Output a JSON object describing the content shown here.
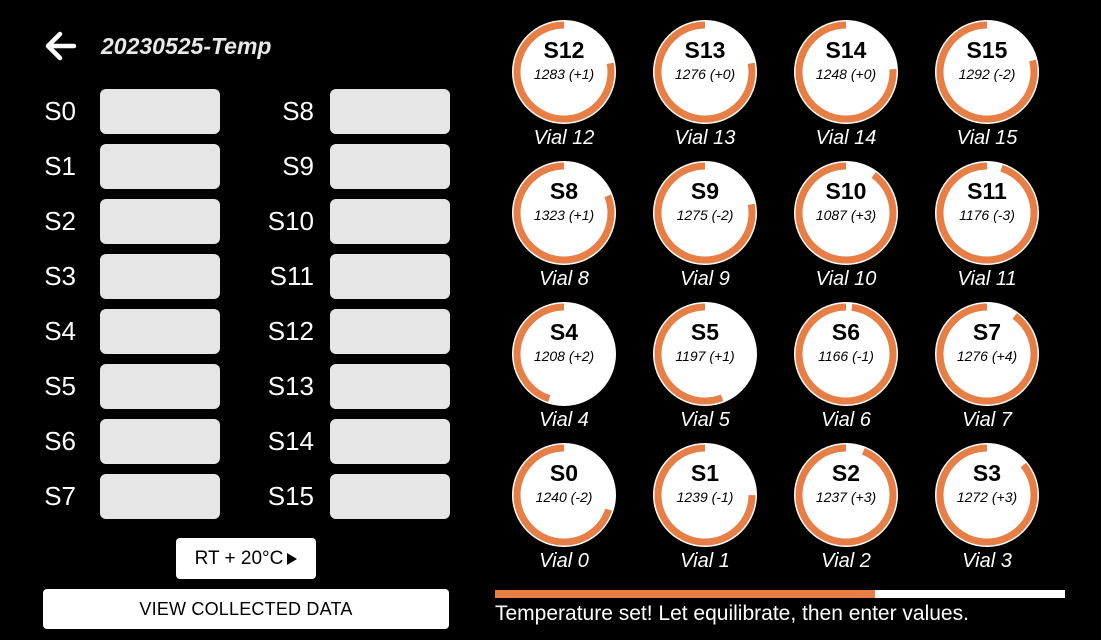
{
  "header": {
    "back_icon": "arrow-left-icon",
    "title": "20230525-Temp"
  },
  "inputs": {
    "left": [
      {
        "label": "S0",
        "value": "",
        "placeholder": ""
      },
      {
        "label": "S1",
        "value": "",
        "placeholder": ""
      },
      {
        "label": "S2",
        "value": "",
        "placeholder": ""
      },
      {
        "label": "S3",
        "value": "",
        "placeholder": ""
      },
      {
        "label": "S4",
        "value": "",
        "placeholder": ""
      },
      {
        "label": "S5",
        "value": "",
        "placeholder": ""
      },
      {
        "label": "S6",
        "value": "",
        "placeholder": ""
      },
      {
        "label": "S7",
        "value": "",
        "placeholder": ""
      }
    ],
    "right": [
      {
        "label": "S8",
        "value": "",
        "placeholder": ""
      },
      {
        "label": "S9",
        "value": "",
        "placeholder": ""
      },
      {
        "label": "S10",
        "value": "",
        "placeholder": ""
      },
      {
        "label": "S11",
        "value": "",
        "placeholder": ""
      },
      {
        "label": "S12",
        "value": "",
        "placeholder": ""
      },
      {
        "label": "S13",
        "value": "",
        "placeholder": ""
      },
      {
        "label": "S14",
        "value": "",
        "placeholder": ""
      },
      {
        "label": "S15",
        "value": "",
        "placeholder": ""
      }
    ]
  },
  "temp_button": {
    "label": "RT + 20°C",
    "icon": "play-triangle-icon"
  },
  "view_button": {
    "label": "VIEW COLLECTED DATA"
  },
  "vials": [
    {
      "name": "S12",
      "reading": "1283 (+1)",
      "label": "Vial 12",
      "fill": 0.78
    },
    {
      "name": "S13",
      "reading": "1276 (+0)",
      "label": "Vial 13",
      "fill": 0.78
    },
    {
      "name": "S14",
      "reading": "1248 (+0)",
      "label": "Vial 14",
      "fill": 0.76
    },
    {
      "name": "S15",
      "reading": "1292 (-2)",
      "label": "Vial 15",
      "fill": 0.79
    },
    {
      "name": "S8",
      "reading": "1323 (+1)",
      "label": "Vial 8",
      "fill": 0.81
    },
    {
      "name": "S9",
      "reading": "1275 (-2)",
      "label": "Vial 9",
      "fill": 0.78
    },
    {
      "name": "S10",
      "reading": "1087 (+3)",
      "label": "Vial 10",
      "fill": 0.9
    },
    {
      "name": "S11",
      "reading": "1176 (-3)",
      "label": "Vial 11",
      "fill": 0.95
    },
    {
      "name": "S4",
      "reading": "1208 (+2)",
      "label": "Vial 4",
      "fill": 0.45
    },
    {
      "name": "S5",
      "reading": "1197 (+1)",
      "label": "Vial 5",
      "fill": 0.56
    },
    {
      "name": "S6",
      "reading": "1166 (-1)",
      "label": "Vial 6",
      "fill": 0.98
    },
    {
      "name": "S7",
      "reading": "1276 (+4)",
      "label": "Vial 7",
      "fill": 0.9
    },
    {
      "name": "S0",
      "reading": "1240 (-2)",
      "label": "Vial 0",
      "fill": 0.7
    },
    {
      "name": "S1",
      "reading": "1239 (-1)",
      "label": "Vial 1",
      "fill": 0.75
    },
    {
      "name": "S2",
      "reading": "1237 (+3)",
      "label": "Vial 2",
      "fill": 0.94
    },
    {
      "name": "S3",
      "reading": "1272 (+3)",
      "label": "Vial 3",
      "fill": 0.86
    }
  ],
  "progress": {
    "fraction": 0.667
  },
  "status": {
    "message": "Temperature set! Let equilibrate, then enter values."
  },
  "colors": {
    "accent": "#e67e45",
    "background": "#000000",
    "input_background": "#e6e6e6",
    "text": "#ffffff"
  }
}
